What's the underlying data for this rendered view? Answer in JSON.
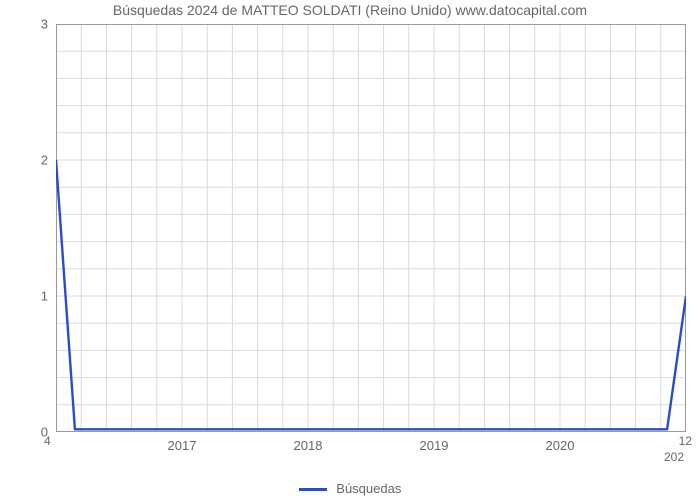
{
  "chart": {
    "type": "line",
    "title": "Búsquedas 2024 de MATTEO SOLDATI (Reino Unido) www.datocapital.com",
    "title_fontsize": 14,
    "title_color": "#666666",
    "background_color": "#ffffff",
    "plot_border_color": "#999999",
    "grid_color": "#d9d9d9",
    "grid_stroke_width": 1,
    "line_color": "#294ccf",
    "line_width": 2.4,
    "axis_label_color": "#666666",
    "axis_label_fontsize": 13,
    "corner_label_fontsize": 12,
    "ylim": [
      0,
      3
    ],
    "yticks": [
      0,
      1,
      2,
      3
    ],
    "ytick_labels": [
      "0",
      "1",
      "2",
      "3"
    ],
    "xlim": [
      2016,
      2021
    ],
    "xticks": [
      2017,
      2018,
      2019,
      2020
    ],
    "xtick_labels": [
      "2017",
      "2018",
      "2019",
      "2020"
    ],
    "x_grid_minor_lines": 25,
    "y_grid_minor_lines": 15,
    "corner_bottom_left": "4",
    "corner_bottom_right": "12",
    "corner_right_bottom": "202",
    "series_name": "Búsquedas",
    "data_x": [
      2016.0,
      2016.15,
      2020.85,
      2021.0
    ],
    "data_y": [
      2.0,
      0.02,
      0.02,
      1.0
    ]
  },
  "legend": {
    "label": "Búsquedas",
    "line_color": "#294ccf"
  }
}
